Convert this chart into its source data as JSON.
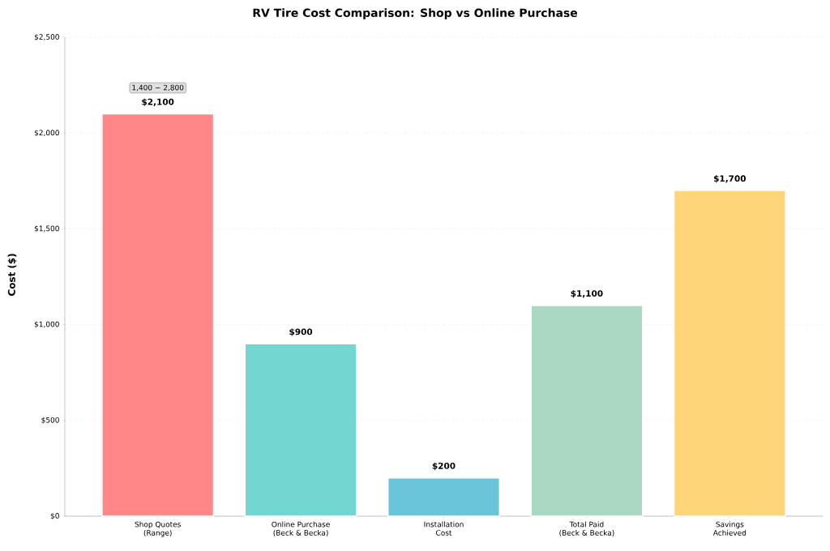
{
  "chart_data": {
    "type": "bar",
    "title": "RV Tire Cost Comparison: Shop vs Online Purchase",
    "ylabel": "Cost ($)",
    "categories": [
      "Shop Quotes\n(Range)",
      "Online Purchase\n(Beck & Becka)",
      "Installation\nCost",
      "Total Paid\n(Beck & Becka)",
      "Savings\nAchieved"
    ],
    "values": [
      2100,
      900,
      200,
      1100,
      1700
    ],
    "colors": [
      "#ff8787",
      "#71d7d0",
      "#6ac5da",
      "#abd8c3",
      "#fed579"
    ],
    "value_labels": [
      "$2,100",
      "$900",
      "$200",
      "$1,100",
      "$1,700"
    ],
    "ylim": [
      0,
      2500
    ],
    "yticks": [
      {
        "value": 0,
        "label": "$0"
      },
      {
        "value": 500,
        "label": "$500"
      },
      {
        "value": 1000,
        "label": "$1,000"
      },
      {
        "value": 1500,
        "label": "$1,500"
      },
      {
        "value": 2000,
        "label": "$2,000"
      },
      {
        "value": 2500,
        "label": "$2,500"
      }
    ],
    "grid": "y",
    "annotations": [
      "1,400 − 2,800"
    ]
  }
}
